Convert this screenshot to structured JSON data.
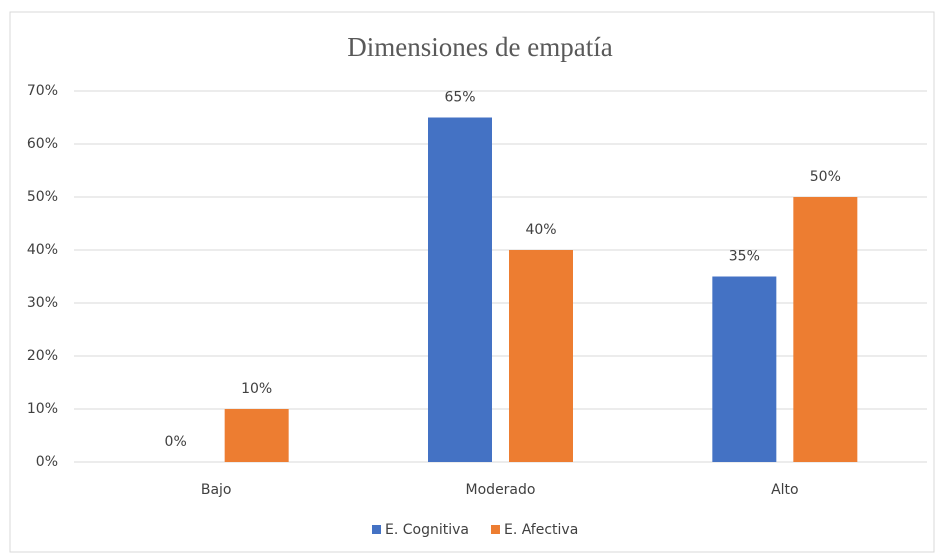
{
  "chart_data": {
    "type": "bar",
    "title": "Dimensiones de empatía",
    "categories": [
      "Bajo",
      "Moderado",
      "Alto"
    ],
    "series": [
      {
        "name": "E. Cognitiva",
        "color": "#4472c4",
        "values": [
          0,
          65,
          35
        ],
        "value_labels": [
          "0%",
          "65%",
          "35%"
        ]
      },
      {
        "name": "E. Afectiva",
        "color": "#ed7d31",
        "values": [
          10,
          40,
          50
        ],
        "value_labels": [
          "10%",
          "40%",
          "50%"
        ]
      }
    ],
    "ylim": [
      0,
      70
    ],
    "yticks": [
      {
        "value": 0,
        "label": "0%"
      },
      {
        "value": 10,
        "label": "10%"
      },
      {
        "value": 20,
        "label": "20%"
      },
      {
        "value": 30,
        "label": "30%"
      },
      {
        "value": 40,
        "label": "40%"
      },
      {
        "value": 50,
        "label": "50%"
      },
      {
        "value": 60,
        "label": "60%"
      },
      {
        "value": 70,
        "label": "70%"
      }
    ],
    "grid": true,
    "legend": "bottom"
  }
}
